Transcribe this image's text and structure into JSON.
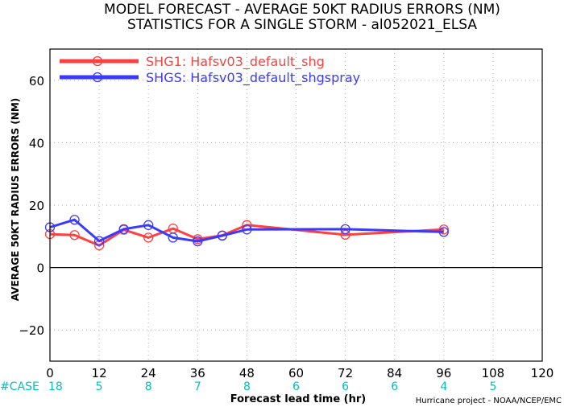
{
  "chart_data": {
    "type": "line",
    "title": "MODEL FORECAST - AVERAGE 50KT RADIUS ERRORS (NM)",
    "subtitle": "STATISTICS FOR A SINGLE STORM - al052021_ELSA",
    "xlabel": "Forecast lead time (hr)",
    "ylabel": "AVERAGE 50KT RADIUS ERRORS (NM)",
    "xlim": [
      0,
      120
    ],
    "ylim": [
      -30,
      70
    ],
    "xticks": [
      0,
      12,
      24,
      36,
      48,
      60,
      72,
      84,
      96,
      108,
      120
    ],
    "yticks": [
      -20,
      0,
      20,
      40,
      60
    ],
    "grid": true,
    "legend_position": "top-left",
    "series": [
      {
        "name": "SHG1: Hafsv03_default_shg",
        "color": "#ff4040",
        "x": [
          0,
          6,
          12,
          18,
          24,
          30,
          36,
          42,
          48,
          72,
          96
        ],
        "y": [
          10.7,
          10.4,
          7.1,
          12.1,
          9.6,
          12.5,
          9.1,
          10.3,
          13.6,
          10.5,
          12.2
        ]
      },
      {
        "name": "SHGS: Hafsv03_default_shgspray",
        "color": "#3a3aff",
        "x": [
          0,
          6,
          12,
          18,
          24,
          30,
          36,
          42,
          48,
          72,
          96
        ],
        "y": [
          12.9,
          15.3,
          8.5,
          12.3,
          13.6,
          9.6,
          8.4,
          10.2,
          12.2,
          12.3,
          11.4
        ]
      }
    ],
    "case_counts": {
      "label": "#CASE",
      "color": "#00c0c0",
      "x": [
        0,
        12,
        24,
        36,
        48,
        60,
        72,
        84,
        96,
        108
      ],
      "values": [
        "18",
        "5",
        "8",
        "7",
        "8",
        "6",
        "6",
        "6",
        "4",
        "5"
      ]
    },
    "credit": "Hurricane project - NOAA/NCEP/EMC"
  }
}
